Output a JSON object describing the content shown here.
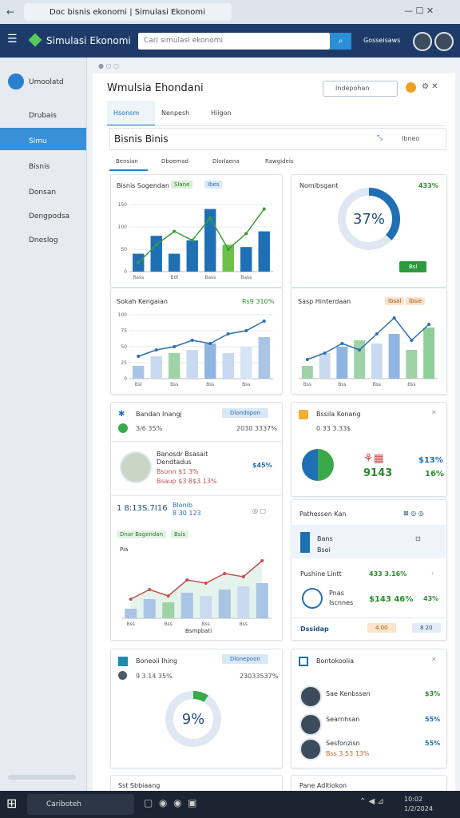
{
  "window": {
    "tab_title": "Doc bisnis ekonomi | Simulasi Ekonomi"
  },
  "header": {
    "app_name": "Simulasi Ekonomi",
    "search_placeholder": "Cari simulasi ekonomi",
    "user_label": "Gosseisaws"
  },
  "sidebar": {
    "items": [
      "Umoolatd",
      "Drubais",
      "Simu",
      "Bisnis",
      "Donsan",
      "Dengpodsa",
      "Dneslog"
    ]
  },
  "page": {
    "title": "Wmulsia Ehondani",
    "action": "Indepohan",
    "tabs": [
      "Hsonsm",
      "Nenpesh",
      "Hiigon"
    ],
    "section_title": "Bisnis Binis",
    "section_action": "Ibneo",
    "subtabs": [
      "Bensian",
      "Dboemad",
      "Dlorlaena",
      "Rawgideis"
    ]
  },
  "cards": {
    "a": {
      "title": "Bisnis Sogendan",
      "tags": [
        "Slane",
        "Ibes"
      ]
    },
    "b": {
      "title": "Nomibsgant",
      "value": "433%",
      "button": "Bsl"
    },
    "c": {
      "title": "Sokah Kengaian",
      "value": "Rs9 310%"
    },
    "d": {
      "title": "Sasp Hinterdaan",
      "tags": [
        "Ibsal",
        "Ibsie"
      ]
    },
    "e": {
      "title": "Bandan Inangj",
      "button": "Dlondopon",
      "row": [
        "3/6 35%",
        "2030 3337%"
      ],
      "person": [
        "Banosdr Bsasait",
        "Dendtadus",
        "Bsonn $1 3%",
        "Bsaup $3 8$3 13%"
      ],
      "person_value": "$45%",
      "stat": "1 8:13S.7I16",
      "stat_side": [
        "Blonib",
        "8 30 123"
      ],
      "tags": [
        "Dnar Bsgendan",
        "Bsis"
      ],
      "axis_label": "Pia",
      "x_label": "Bsmpbati"
    },
    "f": {
      "title": "Bssila Konang",
      "value": "0 33 3.33$",
      "big": "9143",
      "right": [
        "$13%",
        "16%"
      ]
    },
    "g": {
      "title": "Pathessen Kan",
      "item": [
        "Bans",
        "Bsoi"
      ],
      "row": [
        "Pushine Lintt",
        "433 3.16%"
      ],
      "detail": [
        "Pnas",
        "Iscnnes",
        "$143 46%",
        "43%"
      ],
      "footer": [
        "Dssidap",
        "4.00",
        "8 20"
      ]
    },
    "h": {
      "title": "Boneoii Ihing",
      "button": "Dlonepoon",
      "row": [
        "9 3.14 35%",
        "23033537%"
      ]
    },
    "i": {
      "title": "Bontokoolia",
      "people": [
        [
          "Sae Kenbssen",
          "$3%"
        ],
        [
          "Searnhsan",
          "55%"
        ],
        [
          "Sesfonzisn",
          "55%"
        ]
      ],
      "sub": "Bss 3.53 13%"
    },
    "j": {
      "title": "Sst Sbbiaang"
    },
    "k": {
      "title": "Pane Aditiokon"
    }
  },
  "charts": [
    {
      "type": "bar-line",
      "bars": [
        40,
        80,
        40,
        70,
        140,
        60,
        55,
        90
      ],
      "bar_colors": [
        "#1f6fb5",
        "#1f6fb5",
        "#1f6fb5",
        "#1f6fb5",
        "#1f6fb5",
        "#6cc04a",
        "#1f6fb5",
        "#1f6fb5"
      ],
      "line": [
        20,
        60,
        90,
        70,
        120,
        50,
        85,
        140
      ],
      "line_color": "#3a9a3a",
      "ylim": [
        0,
        150
      ],
      "yticks": [
        0,
        50,
        100,
        150
      ],
      "categories": [
        "Rass",
        null,
        "Bdl",
        null,
        "Bass",
        null,
        "Bass",
        null
      ]
    },
    {
      "type": "donut",
      "value": 37,
      "label": "37%",
      "ylim": [
        0,
        100
      ],
      "color": "#1f6fb5"
    },
    {
      "type": "bar-line",
      "bars": [
        20,
        35,
        40,
        45,
        55,
        40,
        50,
        65
      ],
      "bar_colors": [
        "#a9c4e4",
        "#c9daf0",
        "#9fd2a6",
        "#c9daf0",
        "#8fb5e0",
        "#c9daf0",
        "#d6e4f3",
        "#a9c4e4"
      ],
      "line": [
        35,
        45,
        50,
        60,
        55,
        70,
        75,
        90
      ],
      "line_color": "#2d6fb0",
      "ylim": [
        0,
        100
      ],
      "yticks": [
        0,
        25,
        50,
        75,
        100
      ],
      "categories": [
        "Bsl",
        null,
        "Bss",
        null,
        "Bss",
        null,
        "Bss",
        null
      ]
    },
    {
      "type": "bar-line",
      "bars": [
        20,
        40,
        50,
        60,
        55,
        70,
        45,
        80
      ],
      "bar_colors": [
        "#9fd2a6",
        "#c9daf0",
        "#8fb5e0",
        "#9fd2a6",
        "#c9daf0",
        "#8fb5e0",
        "#9fd2a6",
        "#8fcf9a"
      ],
      "line": [
        30,
        40,
        55,
        45,
        70,
        95,
        60,
        85
      ],
      "line_color": "#2d6fb0",
      "ylim": [
        0,
        100
      ],
      "categories": [
        "Bss",
        null,
        "Bss",
        null,
        "Bss",
        null,
        "Bss",
        null
      ]
    },
    {
      "type": "area-line",
      "bars": [
        15,
        30,
        25,
        40,
        35,
        45,
        50,
        55
      ],
      "bar_colors": [
        "#a9c4e4",
        "#a9c4e4",
        "#9fd2a6",
        "#a9c4e4",
        "#c9daf0",
        "#a9c4e4",
        "#c9daf0",
        "#a9c4e4"
      ],
      "line": [
        30,
        45,
        35,
        60,
        55,
        70,
        65,
        90
      ],
      "line_color": "#c0504d",
      "ylim": [
        0,
        100
      ],
      "categories": [
        "Bss",
        null,
        "Bss",
        null,
        "Bss",
        null,
        "Bss",
        null
      ]
    },
    {
      "type": "donut",
      "value": 9,
      "label": "9%",
      "ylim": [
        0,
        100
      ],
      "color": "#3aa94a"
    }
  ],
  "taskbar": {
    "search": "Cariboteh",
    "time": "10:02",
    "date": "1/2/2024"
  }
}
